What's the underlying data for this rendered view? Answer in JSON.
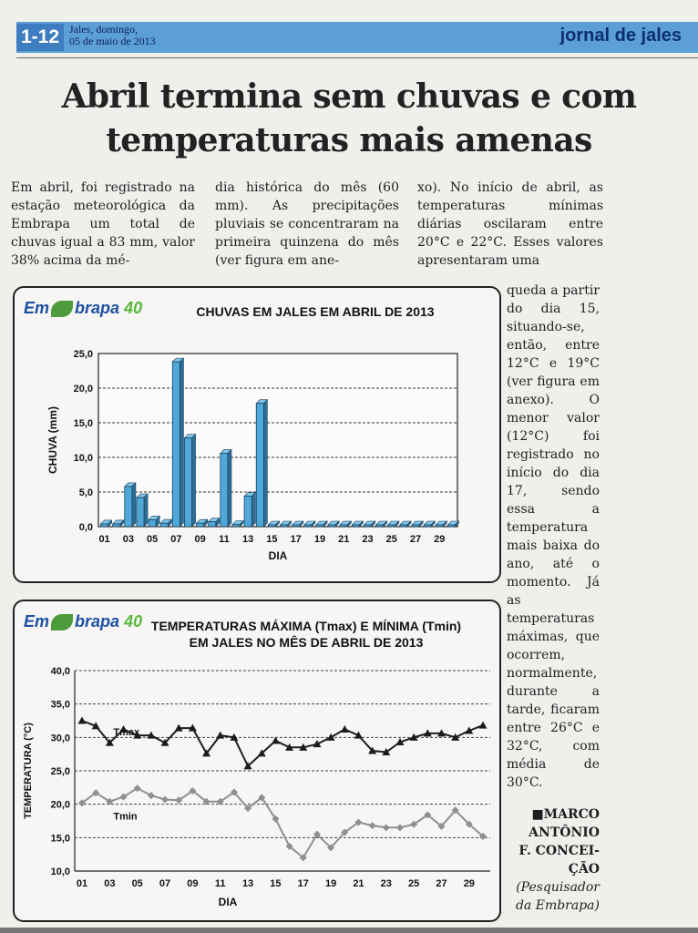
{
  "header": {
    "page_number": "1-12",
    "date_line1": "Jales, domingo,",
    "date_line2": "05 de maio de 2013",
    "newspaper_name": "jornal de jales"
  },
  "article": {
    "headline_line1": "Abril termina sem chuvas e com",
    "headline_line2": "temperaturas mais amenas",
    "column1": "Em abril, foi registrado na estação meteorológica da Embrapa um total de chuvas igual a 83 mm, valor 38% acima da mé-",
    "column2": "dia histórica do mês (60 mm). As precipitações pluviais se concentraram na primeira quinzena do mês (ver figura em ane-",
    "column3": "xo). No início de abril, as temperaturas mínimas diárias oscilaram entre 20°C e 22°C. Esses valores apresentaram uma",
    "right_column": "queda a partir do dia 15, situando-se, então, entre 12°C e 19°C (ver figura em anexo). O menor valor (12°C) foi registrado no início do dia 17, sendo essa a temperatura mais baixa do ano, até o momento. Já as temperaturas máximas, que ocorrem, normalmente, durante a tarde, ficaram entre 26°C e 32°C, com média de 30°C.",
    "author_line1": "■MARCO",
    "author_line2": "ANTÔNIO",
    "author_line3": "F. CONCEI-",
    "author_line4": "ÇÃO",
    "role_line1": "(Pesquisador",
    "role_line2": "da Embrapa)"
  },
  "logo": {
    "text_em": "Em",
    "text_brapa": "brapa",
    "text_40": "40"
  },
  "chart_data": [
    {
      "type": "bar",
      "title": "CHUVAS EM JALES EM ABRIL DE 2013",
      "xlabel": "DIA",
      "ylabel": "CHUVA (mm)",
      "ylim": [
        0,
        25
      ],
      "yticks": [
        "0,0",
        "5,0",
        "10,0",
        "15,0",
        "20,0",
        "25,0"
      ],
      "x_tick_labels": [
        "01",
        "03",
        "05",
        "07",
        "09",
        "11",
        "13",
        "15",
        "17",
        "19",
        "21",
        "23",
        "25",
        "27",
        "29"
      ],
      "categories": [
        "01",
        "02",
        "03",
        "04",
        "05",
        "06",
        "07",
        "08",
        "09",
        "10",
        "11",
        "12",
        "13",
        "14",
        "15",
        "16",
        "17",
        "18",
        "19",
        "20",
        "21",
        "22",
        "23",
        "24",
        "25",
        "26",
        "27",
        "28",
        "29",
        "30"
      ],
      "values": [
        0.4,
        0.4,
        5.8,
        4.2,
        1.0,
        0.5,
        23.8,
        12.8,
        0.5,
        0.7,
        10.6,
        0.3,
        4.4,
        17.8,
        0,
        0,
        0,
        0,
        0,
        0,
        0,
        0,
        0,
        0,
        0,
        0,
        0,
        0,
        0,
        0
      ],
      "grid": true,
      "bar_color": "#4fa8d8"
    },
    {
      "type": "line",
      "title_line1": "TEMPERATURAS MÁXIMA (Tmax) E MÍNIMA (Tmin)",
      "title_line2": "EM JALES NO MÊS DE ABRIL DE 2013",
      "xlabel": "DIA",
      "ylabel": "TEMPERATURA (°C)",
      "ylim": [
        10,
        40
      ],
      "yticks": [
        "10,0",
        "15,0",
        "20,0",
        "25,0",
        "30,0",
        "35,0",
        "40,0"
      ],
      "x_tick_labels": [
        "01",
        "03",
        "05",
        "07",
        "09",
        "11",
        "13",
        "15",
        "17",
        "19",
        "21",
        "23",
        "25",
        "27",
        "29"
      ],
      "x": [
        1,
        2,
        3,
        4,
        5,
        6,
        7,
        8,
        9,
        10,
        11,
        12,
        13,
        14,
        15,
        16,
        17,
        18,
        19,
        20,
        21,
        22,
        23,
        24,
        25,
        26,
        27,
        28,
        29,
        30
      ],
      "series": [
        {
          "name": "Tmax",
          "color": "#1c1c1c",
          "values": [
            32.5,
            31.7,
            29.2,
            31.2,
            30.3,
            30.3,
            29.2,
            31.4,
            31.4,
            27.6,
            30.3,
            30.0,
            25.7,
            27.6,
            29.5,
            28.5,
            28.5,
            29.0,
            30.0,
            31.2,
            30.3,
            28.0,
            27.8,
            29.3,
            30.0,
            30.6,
            30.6,
            30.0,
            31.0,
            31.8
          ]
        },
        {
          "name": "Tmin",
          "color": "#8f8f8f",
          "values": [
            20.2,
            21.7,
            20.4,
            21.1,
            22.4,
            21.3,
            20.7,
            20.6,
            22.0,
            20.4,
            20.4,
            21.8,
            19.4,
            21.0,
            17.8,
            13.7,
            12.0,
            15.5,
            13.5,
            15.8,
            17.3,
            16.8,
            16.5,
            16.5,
            17.0,
            18.4,
            16.7,
            19.1,
            17.0,
            15.2
          ]
        }
      ],
      "grid": true
    }
  ]
}
